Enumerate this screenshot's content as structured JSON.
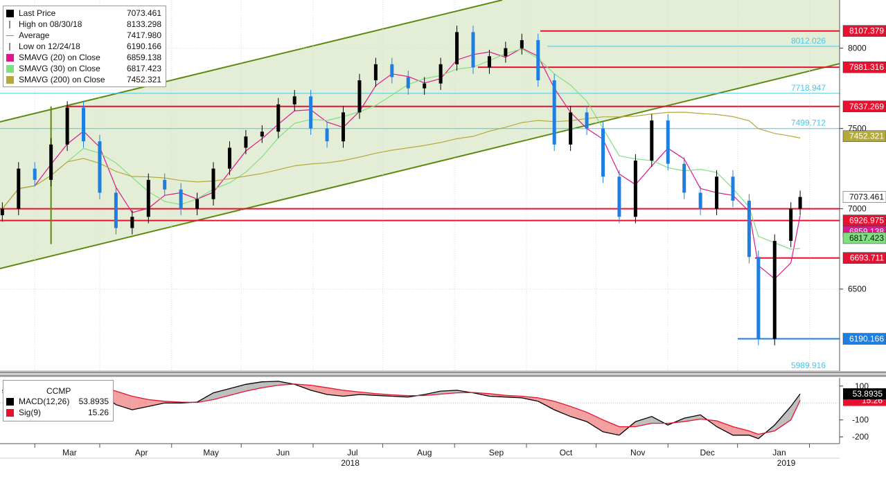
{
  "chart_data": [
    {
      "type": "candlestick",
      "title": "",
      "legend": {
        "position": "top-left",
        "items": [
          {
            "label": "Last Price",
            "value": "7073.461",
            "color": "#000000",
            "marker": "square"
          },
          {
            "label": "High on 08/30/18",
            "value": "8133.298",
            "color": "#888888",
            "marker": "high"
          },
          {
            "label": "Average",
            "value": "7417.980",
            "color": "#888888",
            "marker": "average"
          },
          {
            "label": "Low on 12/24/18",
            "value": "6190.166",
            "color": "#888888",
            "marker": "low"
          },
          {
            "label": "SMAVG (20)  on Close",
            "value": "6859.138",
            "color": "#e0168c",
            "marker": "square"
          },
          {
            "label": "SMAVG (30)  on Close",
            "value": "6817.423",
            "color": "#7fe07f",
            "marker": "square"
          },
          {
            "label": "SMAVG (200)  on Close",
            "value": "7452.321",
            "color": "#b5a93a",
            "marker": "square"
          }
        ]
      },
      "x_axis": {
        "months": [
          "Mar",
          "Apr",
          "May",
          "Jun",
          "Jul",
          "Aug",
          "Sep",
          "Oct",
          "Nov",
          "Dec",
          "Jan"
        ],
        "years": [
          "2018",
          "2019"
        ]
      },
      "y_axis": {
        "ticks": [
          6500,
          7000,
          7500,
          8000
        ],
        "tick_labels": [
          "6500",
          "7000",
          "7500",
          "8000"
        ],
        "range": [
          5990,
          8300
        ],
        "position": "right"
      },
      "series": [
        {
          "name": "Last Price",
          "kind": "close",
          "x": [
            "2018-02-01",
            "2018-02-08",
            "2018-02-15",
            "2018-02-22",
            "2018-03-01",
            "2018-03-08",
            "2018-03-15",
            "2018-03-22",
            "2018-03-29",
            "2018-04-05",
            "2018-04-12",
            "2018-04-19",
            "2018-04-26",
            "2018-05-03",
            "2018-05-10",
            "2018-05-17",
            "2018-05-24",
            "2018-05-31",
            "2018-06-07",
            "2018-06-14",
            "2018-06-21",
            "2018-06-28",
            "2018-07-05",
            "2018-07-12",
            "2018-07-19",
            "2018-07-26",
            "2018-08-02",
            "2018-08-09",
            "2018-08-16",
            "2018-08-23",
            "2018-08-30",
            "2018-09-06",
            "2018-09-13",
            "2018-09-20",
            "2018-09-27",
            "2018-10-04",
            "2018-10-11",
            "2018-10-18",
            "2018-10-25",
            "2018-11-01",
            "2018-11-08",
            "2018-11-15",
            "2018-11-22",
            "2018-11-29",
            "2018-12-06",
            "2018-12-13",
            "2018-12-20",
            "2018-12-24",
            "2018-12-31",
            "2019-01-07",
            "2019-01-11"
          ],
          "values": [
            7000,
            7250,
            7180,
            7400,
            7630,
            7420,
            7100,
            6880,
            6950,
            7180,
            7120,
            7000,
            7060,
            7250,
            7380,
            7450,
            7480,
            7650,
            7700,
            7500,
            7420,
            7600,
            7800,
            7900,
            7820,
            7750,
            7780,
            7900,
            8100,
            7880,
            7950,
            8000,
            8050,
            7800,
            7400,
            7600,
            7500,
            7200,
            6950,
            7300,
            7550,
            7280,
            7100,
            7000,
            7200,
            7050,
            6700,
            6190,
            6800,
            7000,
            7073.461
          ]
        },
        {
          "name": "SMAVG (20)  on Close",
          "value": 6859.138
        },
        {
          "name": "SMAVG (30)  on Close",
          "value": 6817.423
        },
        {
          "name": "SMAVG (200)  on Close",
          "value": 7452.321
        }
      ],
      "horizontal_levels": [
        {
          "value": 8107.379,
          "label": "8107.379",
          "color": "#e8102e",
          "style": "solid"
        },
        {
          "value": 8012.026,
          "label": "8012.026",
          "color": "#45c8e8",
          "style": "solid"
        },
        {
          "value": 7881.316,
          "label": "7881.316",
          "color": "#e8102e",
          "style": "solid"
        },
        {
          "value": 7718.947,
          "label": "7718.947",
          "color": "#45c8e8",
          "style": "solid"
        },
        {
          "value": 7637.269,
          "label": "7637.269",
          "color": "#e8102e",
          "style": "solid"
        },
        {
          "value": 7499.712,
          "label": "7499.712",
          "color": "#45c8e8",
          "style": "solid"
        },
        {
          "value": 7000,
          "label": "",
          "color": "#e8102e",
          "style": "solid"
        },
        {
          "value": 6926.975,
          "label": "6926.975",
          "color": "#e8102e",
          "style": "solid"
        },
        {
          "value": 6693.711,
          "label": "6693.711",
          "color": "#e8102e",
          "style": "solid"
        },
        {
          "value": 6190.166,
          "label": "6190.166",
          "color": "#1f7fe0",
          "style": "solid"
        },
        {
          "value": 5989.916,
          "label": "5989.916",
          "color": "#45c8e8",
          "style": "solid"
        }
      ],
      "axis_badges": [
        {
          "value": 8107.379,
          "label": "8107.379",
          "color": "#e8102e"
        },
        {
          "value": 7881.316,
          "label": "7881.316",
          "color": "#e8102e"
        },
        {
          "value": 7637.269,
          "label": "7637.269",
          "color": "#e8102e"
        },
        {
          "value": 7452.321,
          "label": "7452.321",
          "color": "#b5a93a"
        },
        {
          "value": 7073.461,
          "label": "7073.461",
          "color": "#ffffff"
        },
        {
          "value": 6926.975,
          "label": "6926.975",
          "color": "#e8102e"
        },
        {
          "value": 6859.138,
          "label": "6859.138",
          "color": "#e0168c"
        },
        {
          "value": 6817.423,
          "label": "6817.423",
          "color": "#7fe07f"
        },
        {
          "value": 6693.711,
          "label": "6693.711",
          "color": "#e8102e"
        },
        {
          "value": 6190.166,
          "label": "6190.166",
          "color": "#1f7fe0"
        }
      ],
      "channel": {
        "color": "#5c8a10",
        "fill": "#e4eed6"
      },
      "colors": {
        "up": "#000000",
        "down": "#1f7fe0",
        "grid": "#d9d9d9"
      }
    },
    {
      "type": "line",
      "title": "CCMP",
      "legend": {
        "position": "top-left",
        "items": [
          {
            "label": "MACD(12,26)",
            "value": "53.8935",
            "color": "#000000"
          },
          {
            "label": "Sig(9)",
            "value": "15.26",
            "color": "#e8102e"
          }
        ]
      },
      "y_axis": {
        "ticks": [
          100,
          -100,
          -200
        ],
        "tick_labels": [
          "100",
          "-100",
          "-200"
        ],
        "range": [
          -240,
          140
        ],
        "position": "right"
      },
      "series": [
        {
          "name": "MACD(12,26)",
          "values": [
            75,
            95,
            105,
            115,
            130,
            110,
            60,
            -10,
            -40,
            -20,
            0,
            0,
            5,
            60,
            85,
            110,
            125,
            128,
            110,
            75,
            50,
            40,
            50,
            45,
            40,
            35,
            50,
            70,
            75,
            60,
            40,
            35,
            30,
            10,
            -40,
            -80,
            -110,
            -170,
            -190,
            -110,
            -80,
            -130,
            -90,
            -70,
            -140,
            -190,
            -190,
            -210,
            -130,
            -20,
            53.8935
          ]
        },
        {
          "name": "Sig(9)",
          "values": [
            60,
            70,
            80,
            90,
            100,
            105,
            95,
            70,
            40,
            20,
            10,
            5,
            3,
            20,
            45,
            70,
            90,
            105,
            112,
            105,
            90,
            75,
            65,
            55,
            48,
            43,
            44,
            52,
            60,
            62,
            55,
            45,
            40,
            30,
            10,
            -20,
            -55,
            -100,
            -140,
            -140,
            -120,
            -120,
            -110,
            -95,
            -105,
            -140,
            -165,
            -185,
            -165,
            -100,
            15.26
          ]
        }
      ],
      "colors": {
        "macd": "#000000",
        "signal": "#e8102e",
        "pos_fill": "#bfbfbf",
        "neg_fill": "#f2a0a0"
      }
    }
  ]
}
